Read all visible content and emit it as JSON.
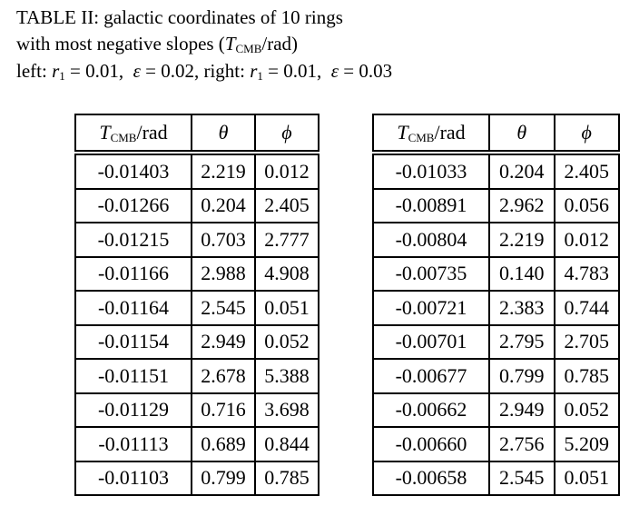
{
  "caption": {
    "line1": "TABLE II: galactic coordinates of 10 rings",
    "line2_prefix": "with most negative slopes (",
    "line2_T": "T",
    "line2_sub": "CMB",
    "line2_suffix": "/rad)",
    "line3_left": "left: ",
    "r_sym": "r",
    "r_sub": "1",
    "left_r": " = 0.01,  ",
    "eps": "ε",
    "left_eps": " = 0.02, right: ",
    "right_r": " = 0.01,  ",
    "right_eps": " = 0.03"
  },
  "headers": {
    "T": "T",
    "T_sub": "CMB",
    "T_unit": "/rad",
    "theta": "θ",
    "phi": "ϕ"
  },
  "tables": {
    "left": [
      [
        "-0.01403",
        "2.219",
        "0.012"
      ],
      [
        "-0.01266",
        "0.204",
        "2.405"
      ],
      [
        "-0.01215",
        "0.703",
        "2.777"
      ],
      [
        "-0.01166",
        "2.988",
        "4.908"
      ],
      [
        "-0.01164",
        "2.545",
        "0.051"
      ],
      [
        "-0.01154",
        "2.949",
        "0.052"
      ],
      [
        "-0.01151",
        "2.678",
        "5.388"
      ],
      [
        "-0.01129",
        "0.716",
        "3.698"
      ],
      [
        "-0.01113",
        "0.689",
        "0.844"
      ],
      [
        "-0.01103",
        "0.799",
        "0.785"
      ]
    ],
    "right": [
      [
        "-0.01033",
        "0.204",
        "2.405"
      ],
      [
        "-0.00891",
        "2.962",
        "0.056"
      ],
      [
        "-0.00804",
        "2.219",
        "0.012"
      ],
      [
        "-0.00735",
        "0.140",
        "4.783"
      ],
      [
        "-0.00721",
        "2.383",
        "0.744"
      ],
      [
        "-0.00701",
        "2.795",
        "2.705"
      ],
      [
        "-0.00677",
        "0.799",
        "0.785"
      ],
      [
        "-0.00662",
        "2.949",
        "0.052"
      ],
      [
        "-0.00660",
        "2.756",
        "5.209"
      ],
      [
        "-0.00658",
        "2.545",
        "0.051"
      ]
    ]
  }
}
